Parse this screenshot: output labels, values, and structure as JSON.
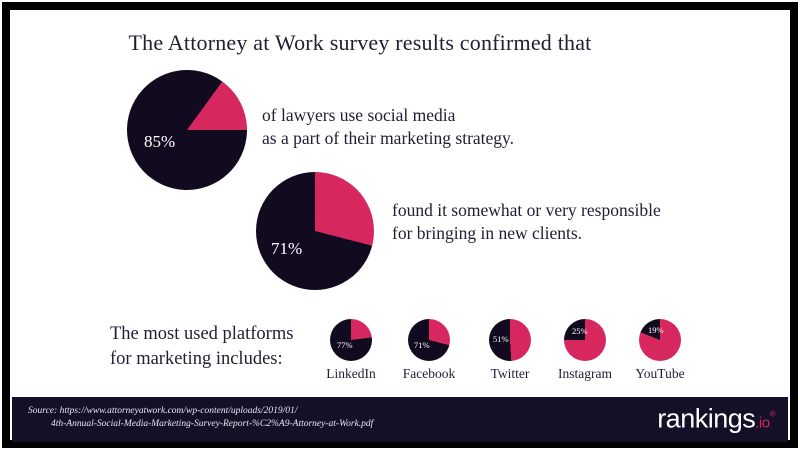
{
  "title": "The Attorney at Work survey results confirmed that",
  "colors": {
    "pink": "#d6275e",
    "dark": "#120b20",
    "footer_bg": "#141028",
    "text": "#201e33"
  },
  "stat_pies": [
    {
      "value_label": "85%",
      "percent": 85,
      "caption_line1": "of lawyers use social media",
      "caption_line2": "as a part of their marketing strategy."
    },
    {
      "value_label": "71%",
      "percent": 71,
      "caption_line1": "found it somewhat or very responsible",
      "caption_line2": "for bringing in new clients."
    }
  ],
  "platforms": {
    "heading_line1": "The most used platforms",
    "heading_line2": "for marketing includes:",
    "items": [
      {
        "name": "LinkedIn",
        "value_label": "77%",
        "percent": 77
      },
      {
        "name": "Facebook",
        "value_label": "71%",
        "percent": 71
      },
      {
        "name": "Twitter",
        "value_label": "51%",
        "percent": 51
      },
      {
        "name": "Instagram",
        "value_label": "25%",
        "percent": 25
      },
      {
        "name": "YouTube",
        "value_label": "19%",
        "percent": 19
      }
    ]
  },
  "footer": {
    "source_line1": "Source: https://www.attorneyatwork.com/wp-content/uploads/2019/01/",
    "source_line2": "4th-Annual-Social-Media-Marketing-Survey-Report-%C2%A9-Attorney-at-Work.pdf",
    "brand": "rankings",
    "brand_tld": ".io",
    "brand_mark": "®"
  },
  "chart_data": [
    {
      "type": "pie",
      "title": "85%",
      "slices": [
        {
          "label": "85%",
          "value": 85,
          "color": "#120b20"
        },
        {
          "label": "remainder",
          "value": 15,
          "color": "#d6275e"
        }
      ],
      "annotation": "of lawyers use social media as a part of their marketing strategy."
    },
    {
      "type": "pie",
      "title": "71%",
      "slices": [
        {
          "label": "71%",
          "value": 71,
          "color": "#120b20"
        },
        {
          "label": "remainder",
          "value": 29,
          "color": "#d6275e"
        }
      ],
      "annotation": "found it somewhat or very responsible for bringing in new clients."
    },
    {
      "type": "pie",
      "title": "LinkedIn",
      "slices": [
        {
          "label": "77%",
          "value": 77,
          "color": "#120b20"
        },
        {
          "label": "remainder",
          "value": 23,
          "color": "#d6275e"
        }
      ]
    },
    {
      "type": "pie",
      "title": "Facebook",
      "slices": [
        {
          "label": "71%",
          "value": 71,
          "color": "#120b20"
        },
        {
          "label": "remainder",
          "value": 29,
          "color": "#d6275e"
        }
      ]
    },
    {
      "type": "pie",
      "title": "Twitter",
      "slices": [
        {
          "label": "51%",
          "value": 51,
          "color": "#120b20"
        },
        {
          "label": "remainder",
          "value": 49,
          "color": "#d6275e"
        }
      ]
    },
    {
      "type": "pie",
      "title": "Instagram",
      "slices": [
        {
          "label": "25%",
          "value": 25,
          "color": "#120b20"
        },
        {
          "label": "remainder",
          "value": 75,
          "color": "#d6275e"
        }
      ]
    },
    {
      "type": "pie",
      "title": "YouTube",
      "slices": [
        {
          "label": "19%",
          "value": 19,
          "color": "#120b20"
        },
        {
          "label": "remainder",
          "value": 81,
          "color": "#d6275e"
        }
      ]
    }
  ]
}
